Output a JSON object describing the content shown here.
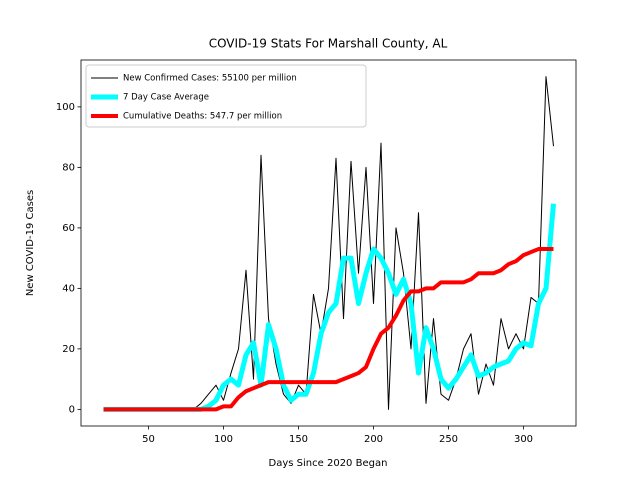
{
  "chart_data": {
    "type": "line",
    "title": "COVID-19 Stats For Marshall County, AL",
    "xlabel": "Days Since 2020 Began",
    "ylabel": "New COVID-19 Cases",
    "x": [
      20,
      25,
      30,
      35,
      40,
      45,
      50,
      55,
      60,
      65,
      70,
      75,
      80,
      85,
      90,
      95,
      100,
      105,
      110,
      115,
      120,
      125,
      130,
      135,
      140,
      145,
      150,
      155,
      160,
      165,
      170,
      175,
      180,
      185,
      190,
      195,
      200,
      205,
      210,
      215,
      220,
      225,
      230,
      235,
      240,
      245,
      250,
      255,
      260,
      265,
      270,
      275,
      280,
      285,
      290,
      295,
      300,
      305,
      310,
      315,
      320
    ],
    "series": [
      {
        "name": "New Confirmed Cases: 55100 per million",
        "color": "#000000",
        "width": 1,
        "values": [
          0,
          0,
          0,
          0,
          0,
          0,
          0,
          0,
          0,
          0,
          0,
          0,
          0,
          2,
          5,
          8,
          3,
          12,
          20,
          46,
          10,
          84,
          30,
          15,
          5,
          2,
          8,
          5,
          38,
          25,
          40,
          83,
          30,
          82,
          45,
          80,
          35,
          88,
          0,
          60,
          45,
          20,
          65,
          2,
          30,
          5,
          3,
          10,
          20,
          25,
          5,
          15,
          8,
          30,
          20,
          25,
          20,
          37,
          35,
          110,
          87
        ]
      },
      {
        "name": "7 Day Case Average",
        "color": "#00ffff",
        "width": 5,
        "values": [
          0,
          0,
          0,
          0,
          0,
          0,
          0,
          0,
          0,
          0,
          0,
          0,
          0,
          0,
          1,
          3,
          8,
          10,
          8,
          18,
          22,
          8,
          28,
          20,
          8,
          3,
          5,
          5,
          12,
          25,
          32,
          35,
          50,
          50,
          35,
          45,
          53,
          50,
          45,
          38,
          43,
          35,
          12,
          27,
          20,
          10,
          7,
          10,
          14,
          18,
          11,
          12,
          14,
          15,
          16,
          20,
          22,
          21,
          35,
          40,
          68
        ]
      },
      {
        "name": "Cumulative Deaths: 547.7 per million",
        "color": "#ff0000",
        "width": 4,
        "values": [
          0,
          0,
          0,
          0,
          0,
          0,
          0,
          0,
          0,
          0,
          0,
          0,
          0,
          0,
          0,
          0,
          1,
          1,
          4,
          6,
          7,
          8,
          9,
          9,
          9,
          9,
          9,
          9,
          9,
          9,
          9,
          9,
          10,
          11,
          12,
          14,
          20,
          25,
          27,
          31,
          36,
          39,
          39,
          40,
          40,
          42,
          42,
          42,
          42,
          43,
          45,
          45,
          45,
          46,
          48,
          49,
          51,
          52,
          53,
          53,
          53
        ]
      }
    ],
    "xlim": [
      5,
      335
    ],
    "ylim": [
      -5.5,
      115.5
    ],
    "xticks": [
      50,
      100,
      150,
      200,
      250,
      300
    ],
    "yticks": [
      0,
      20,
      40,
      60,
      80,
      100
    ],
    "legend": "upper left"
  }
}
